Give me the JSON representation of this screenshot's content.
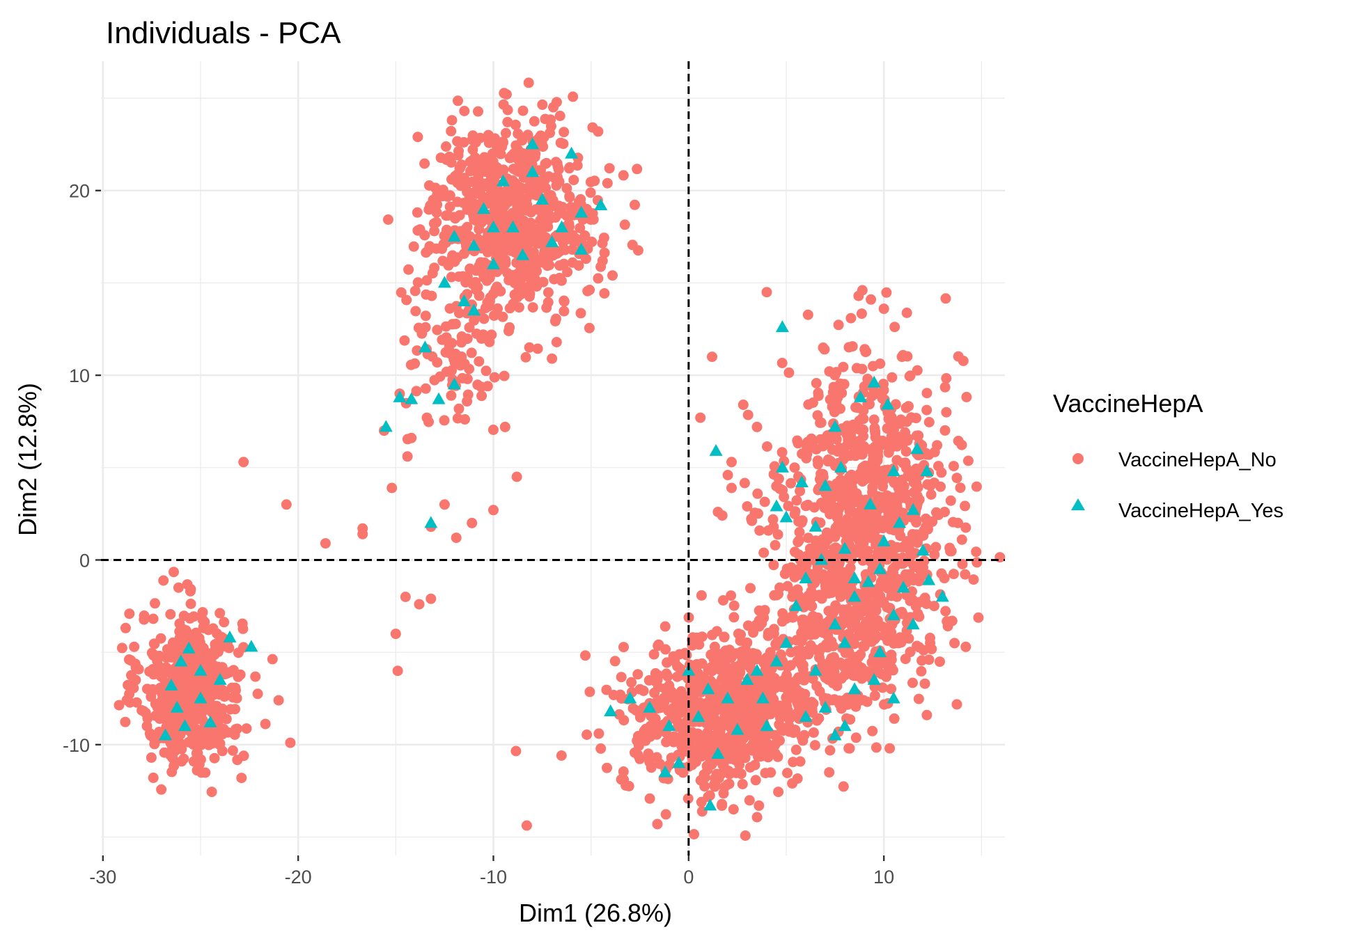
{
  "chart_data": {
    "type": "scatter",
    "title": "Individuals - PCA",
    "xlabel": "Dim1 (26.8%)",
    "ylabel": "Dim2 (12.8%)",
    "xlim": [
      -30.1,
      16.2
    ],
    "ylim": [
      -16.0,
      27.0
    ],
    "x_ticks": [
      -30,
      -20,
      -10,
      0,
      10
    ],
    "y_ticks": [
      -10,
      0,
      10,
      20
    ],
    "x_tick_labels": [
      "-30",
      "-20",
      "-10",
      "0",
      "10"
    ],
    "y_tick_labels": [
      "-10",
      "0",
      "10",
      "20"
    ],
    "grid": true,
    "reference_lines": {
      "x": 0,
      "y": 0,
      "style": "dashed"
    },
    "legend": {
      "title": "VaccineHepA",
      "position": "right"
    },
    "series": [
      {
        "name": "VaccineHepA_No",
        "marker": "circle",
        "color": "#F8766D",
        "clusters": [
          {
            "center": [
              -25.5,
              -7.0
            ],
            "sd": [
              1.3,
              2.1
            ],
            "count": 520
          },
          {
            "center": [
              -9.0,
              18.5
            ],
            "sd": [
              2.2,
              2.6
            ],
            "count": 700
          },
          {
            "center": [
              -12.0,
              11.0
            ],
            "sd": [
              1.4,
              2.2
            ],
            "count": 80
          },
          {
            "center": [
              1.5,
              -8.5
            ],
            "sd": [
              2.5,
              2.1
            ],
            "count": 650
          },
          {
            "center": [
              9.0,
              2.0
            ],
            "sd": [
              2.2,
              4.4
            ],
            "count": 950
          },
          {
            "center": [
              6.5,
              -5.0
            ],
            "sd": [
              2.2,
              2.2
            ],
            "count": 250
          }
        ],
        "outliers": [
          [
            -22.8,
            5.3
          ],
          [
            -20.6,
            3.0
          ],
          [
            -18.6,
            0.9
          ],
          [
            -16.7,
            1.7
          ],
          [
            -16.7,
            1.4
          ],
          [
            -15.2,
            3.9
          ],
          [
            -15.0,
            -4.0
          ],
          [
            -14.9,
            -6.0
          ],
          [
            -14.5,
            -2.0
          ],
          [
            -13.8,
            -2.4
          ],
          [
            -13.2,
            -2.1
          ],
          [
            -13.2,
            1.8
          ],
          [
            -12.5,
            3.0
          ],
          [
            -11.9,
            1.2
          ],
          [
            -11.1,
            2.0
          ],
          [
            -10.0,
            2.7
          ],
          [
            -8.8,
            4.5
          ],
          [
            -9.4,
            7.2
          ],
          [
            -20.4,
            -9.9
          ],
          [
            -21.0,
            -7.6
          ],
          [
            -22.9,
            -11.8
          ],
          [
            -28.4,
            -4.7
          ],
          [
            -7.0,
            10.9
          ],
          [
            -10.2,
            11.8
          ],
          [
            -14.8,
            9.0
          ],
          [
            -14.2,
            6.6
          ],
          [
            -15.6,
            7.0
          ],
          [
            -14.4,
            5.6
          ],
          [
            1.2,
            11.0
          ],
          [
            4.0,
            14.5
          ],
          [
            8.9,
            14.6
          ],
          [
            10.0,
            13.6
          ],
          [
            13.2,
            8.0
          ],
          [
            -4.6,
            -9.4
          ],
          [
            -3.5,
            -7.3
          ],
          [
            -2.3,
            -8.0
          ],
          [
            -1.6,
            -14.3
          ],
          [
            -1.0,
            -6.8
          ],
          [
            2.3,
            -13.5
          ],
          [
            3.6,
            -13.3
          ],
          [
            7.2,
            -11.5
          ],
          [
            8.2,
            -10.2
          ],
          [
            10.3,
            -10.2
          ],
          [
            12.2,
            -8.4
          ],
          [
            14.0,
            1.1
          ],
          [
            13.5,
            -3.3
          ],
          [
            2.2,
            5.3
          ],
          [
            2.2,
            3.9
          ],
          [
            0.6,
            7.7
          ],
          [
            1.5,
            2.6
          ],
          [
            3.0,
            2.9
          ],
          [
            -1.2,
            -3.6
          ],
          [
            2.8,
            8.4
          ],
          [
            3.5,
            7.2
          ]
        ]
      },
      {
        "name": "VaccineHepA_Yes",
        "marker": "triangle",
        "color": "#00BFC4",
        "points": [
          [
            -26.5,
            -6.8
          ],
          [
            -25.6,
            -4.8
          ],
          [
            -25.0,
            -7.5
          ],
          [
            -24.5,
            -8.8
          ],
          [
            -23.5,
            -4.2
          ],
          [
            -22.4,
            -4.7
          ],
          [
            -26.8,
            -9.5
          ],
          [
            -26.2,
            -8.0
          ],
          [
            -25.0,
            -6.0
          ],
          [
            -26.0,
            -5.5
          ],
          [
            -25.8,
            -9.0
          ],
          [
            -24.0,
            -6.5
          ],
          [
            -6.0,
            22.0
          ],
          [
            -8.0,
            21.0
          ],
          [
            -10.5,
            19.0
          ],
          [
            -9.0,
            18.0
          ],
          [
            -11.0,
            17.0
          ],
          [
            -12.0,
            17.5
          ],
          [
            -8.5,
            16.5
          ],
          [
            -7.0,
            17.2
          ],
          [
            -5.5,
            16.8
          ],
          [
            -5.5,
            18.8
          ],
          [
            -4.5,
            19.2
          ],
          [
            -10.0,
            18.0
          ],
          [
            -8.0,
            22.5
          ],
          [
            -9.5,
            20.5
          ],
          [
            -11.5,
            14.0
          ],
          [
            -11.0,
            13.5
          ],
          [
            -13.5,
            11.5
          ],
          [
            -12.0,
            9.5
          ],
          [
            -12.8,
            8.7
          ],
          [
            -14.2,
            8.7
          ],
          [
            -14.8,
            8.8
          ],
          [
            -15.5,
            7.2
          ],
          [
            -13.2,
            2.0
          ],
          [
            -7.5,
            19.5
          ],
          [
            -6.5,
            18.0
          ],
          [
            -10.0,
            16.0
          ],
          [
            -12.5,
            15.0
          ],
          [
            1.4,
            5.9
          ],
          [
            4.8,
            12.6
          ],
          [
            9.5,
            9.6
          ],
          [
            8.8,
            8.8
          ],
          [
            10.2,
            8.4
          ],
          [
            7.5,
            7.2
          ],
          [
            4.8,
            5.0
          ],
          [
            10.5,
            4.8
          ],
          [
            12.2,
            4.8
          ],
          [
            11.7,
            6.0
          ],
          [
            7.8,
            5.0
          ],
          [
            5.8,
            4.2
          ],
          [
            7.0,
            4.0
          ],
          [
            11.5,
            2.7
          ],
          [
            9.3,
            3.0
          ],
          [
            4.5,
            2.9
          ],
          [
            5.0,
            2.3
          ],
          [
            6.5,
            1.8
          ],
          [
            8.0,
            0.6
          ],
          [
            10.0,
            1.0
          ],
          [
            8.5,
            -1.0
          ],
          [
            9.2,
            -1.2
          ],
          [
            11.0,
            -1.5
          ],
          [
            12.3,
            -1.1
          ],
          [
            13.0,
            -2.0
          ],
          [
            8.5,
            -2.0
          ],
          [
            10.5,
            -3.0
          ],
          [
            11.5,
            -3.5
          ],
          [
            5.5,
            -2.5
          ],
          [
            6.0,
            -1.0
          ],
          [
            7.5,
            -3.5
          ],
          [
            8.0,
            -4.5
          ],
          [
            9.8,
            -5.0
          ],
          [
            5.0,
            -4.5
          ],
          [
            4.5,
            -5.5
          ],
          [
            3.5,
            -6.0
          ],
          [
            6.5,
            -6.0
          ],
          [
            9.5,
            -6.5
          ],
          [
            8.5,
            -7.0
          ],
          [
            10.5,
            -7.5
          ],
          [
            7.0,
            -8.0
          ],
          [
            6.0,
            -8.5
          ],
          [
            8.0,
            -9.0
          ],
          [
            7.5,
            -9.5
          ],
          [
            3.0,
            -6.5
          ],
          [
            2.0,
            -7.5
          ],
          [
            1.0,
            -7.0
          ],
          [
            3.8,
            -7.5
          ],
          [
            0.5,
            -8.5
          ],
          [
            4.0,
            -9.0
          ],
          [
            2.5,
            -9.2
          ],
          [
            1.5,
            -10.5
          ],
          [
            -1.0,
            -9.0
          ],
          [
            -1.2,
            -11.5
          ],
          [
            -0.5,
            -11.0
          ],
          [
            1.1,
            -13.3
          ],
          [
            -4.0,
            -8.2
          ],
          [
            -3.0,
            -7.5
          ],
          [
            -2.0,
            -8.0
          ],
          [
            0.0,
            -6.0
          ],
          [
            12.0,
            0.5
          ],
          [
            10.8,
            2.0
          ],
          [
            6.8,
            0.0
          ],
          [
            9.8,
            -0.5
          ]
        ]
      }
    ]
  }
}
